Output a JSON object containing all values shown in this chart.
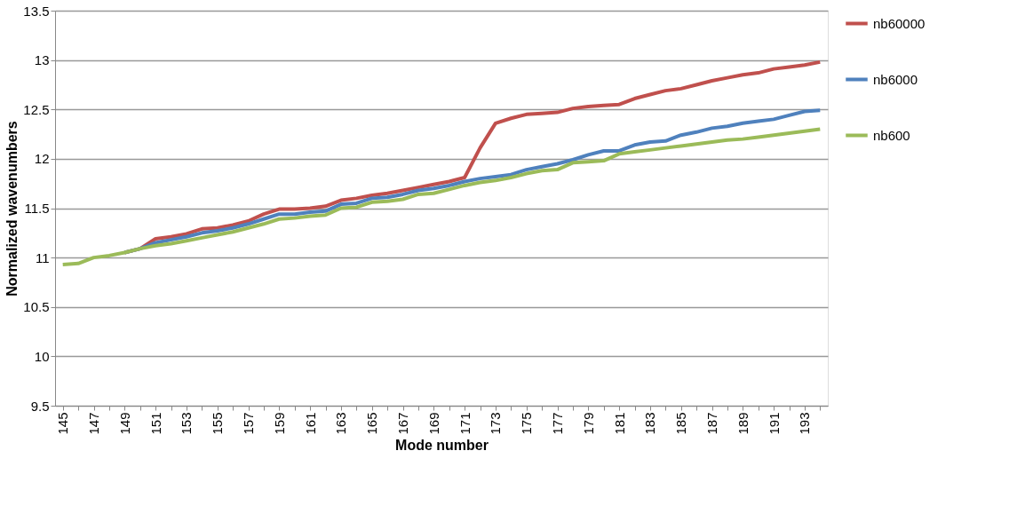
{
  "chart_data": {
    "type": "line",
    "xlabel": "Mode number",
    "ylabel": "Normalized wavenumbers",
    "categories": [
      "145",
      null,
      "147",
      null,
      "149",
      null,
      "151",
      null,
      "153",
      null,
      "155",
      null,
      "157",
      null,
      "159",
      null,
      "161",
      null,
      "163",
      null,
      "165",
      null,
      "167",
      null,
      "169",
      null,
      "171",
      null,
      "173",
      null,
      "175",
      null,
      "177",
      null,
      "179",
      null,
      "181",
      null,
      "183",
      null,
      "185",
      null,
      "187",
      null,
      "189",
      null,
      "191",
      null,
      "193",
      null
    ],
    "series": [
      {
        "name": "nb60000",
        "color": "#c0504d",
        "values": [
          null,
          null,
          null,
          null,
          11.05,
          11.09,
          11.19,
          11.21,
          11.24,
          11.29,
          11.3,
          11.33,
          11.37,
          11.44,
          11.49,
          11.49,
          11.5,
          11.52,
          11.58,
          11.6,
          11.63,
          11.65,
          11.68,
          11.71,
          11.74,
          11.77,
          11.81,
          12.11,
          12.36,
          12.41,
          12.45,
          12.46,
          12.47,
          12.51,
          12.53,
          12.54,
          12.55,
          12.61,
          12.65,
          12.69,
          12.71,
          12.75,
          12.79,
          12.82,
          12.85,
          12.87,
          12.91,
          12.93,
          12.95,
          12.98
        ]
      },
      {
        "name": "nb6000",
        "color": "#4f81bd",
        "values": [
          null,
          null,
          null,
          null,
          11.05,
          11.09,
          11.15,
          11.18,
          11.21,
          11.25,
          11.27,
          11.3,
          11.34,
          11.39,
          11.44,
          11.44,
          11.46,
          11.47,
          11.54,
          11.55,
          11.6,
          11.61,
          11.64,
          11.68,
          11.7,
          11.73,
          11.77,
          11.8,
          11.82,
          11.84,
          11.89,
          11.92,
          11.95,
          11.99,
          12.04,
          12.08,
          12.08,
          12.14,
          12.17,
          12.18,
          12.24,
          12.27,
          12.31,
          12.33,
          12.36,
          12.38,
          12.4,
          12.44,
          12.48,
          12.49
        ]
      },
      {
        "name": "nb600",
        "color": "#9bbb59",
        "values": [
          10.93,
          10.94,
          11.0,
          11.02,
          11.05,
          11.09,
          11.12,
          11.14,
          11.17,
          11.2,
          11.23,
          11.26,
          11.3,
          11.34,
          11.39,
          11.4,
          11.42,
          11.43,
          11.5,
          11.51,
          11.56,
          11.57,
          11.59,
          11.64,
          11.65,
          11.69,
          11.73,
          11.76,
          11.78,
          11.81,
          11.85,
          11.88,
          11.89,
          11.96,
          11.97,
          11.98,
          12.05,
          12.07,
          12.09,
          12.11,
          12.13,
          12.15,
          12.17,
          12.19,
          12.2,
          12.22,
          12.24,
          12.26,
          12.28,
          12.3
        ]
      }
    ],
    "ylim": [
      9.5,
      13.5
    ],
    "yticks": [
      9.5,
      10,
      10.5,
      11,
      11.5,
      12,
      12.5,
      13,
      13.5
    ],
    "grid": "y",
    "legend": "right",
    "line_style": "solid",
    "marker": "none"
  }
}
